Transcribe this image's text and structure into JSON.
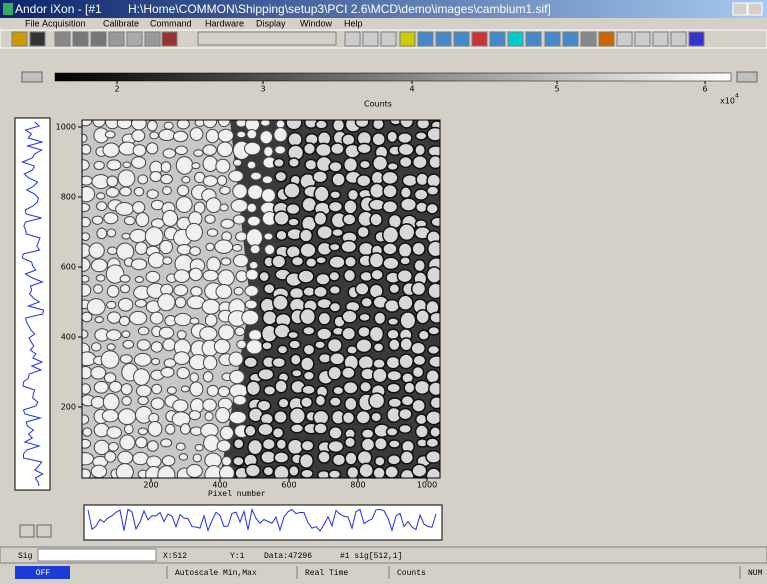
{
  "window": {
    "title": "Andor iXon - [#1",
    "path": "H:\\Home\\COMMON\\Shipping\\setup3\\PCI 2.6\\MCD\\demo\\images\\cambium1.sif]"
  },
  "menu": [
    "File",
    "Acquisition",
    "Calibrate",
    "Command",
    "Hardware",
    "Display",
    "Window",
    "Help"
  ],
  "colorbar": {
    "ticks": [
      "2",
      "3",
      "4",
      "5",
      "6"
    ],
    "label": "Counts",
    "scale": "x10",
    "exponent": "4"
  },
  "image": {
    "yticks": [
      "200",
      "400",
      "600",
      "800",
      "1000"
    ],
    "xticks": [
      "200",
      "400",
      "600",
      "800",
      "1000"
    ],
    "xlabel": "Pixel number"
  },
  "status": {
    "signal": "Sig",
    "x": "X:512",
    "y": "Y:1",
    "data": "Data:47296",
    "trace": "#1 sig[512,1]"
  },
  "footer": [
    "OFF",
    "Autoscale Min,Max",
    "Real Time",
    "Counts",
    "NUM"
  ]
}
